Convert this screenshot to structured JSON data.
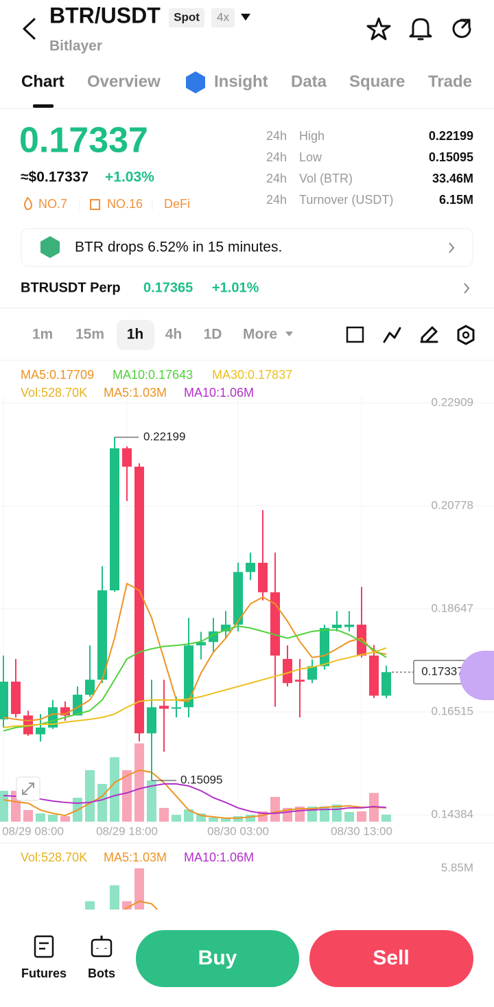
{
  "header": {
    "title": "BTR/USDT",
    "badges": [
      "Spot",
      "4x"
    ],
    "subtitle": "Bitlayer"
  },
  "tabs": [
    "Chart",
    "Overview",
    "Insight",
    "Data",
    "Square",
    "Trade"
  ],
  "price": {
    "last": "0.17337",
    "usd": "≈$0.17337",
    "change": "+1.03%",
    "tags": [
      "NO.7",
      "NO.16",
      "DeFi"
    ]
  },
  "stats": [
    [
      "24h",
      "High",
      "0.22199"
    ],
    [
      "24h",
      "Low",
      "0.15095"
    ],
    [
      "24h",
      "Vol (BTR)",
      "33.46M"
    ],
    [
      "24h",
      "Turnover (USDT)",
      "6.15M"
    ]
  ],
  "alert": "BTR drops 6.52% in 15 minutes.",
  "perp": {
    "name": "BTRUSDT Perp",
    "price": "0.17365",
    "change": "+1.01%"
  },
  "timeframes": [
    "1m",
    "15m",
    "1h",
    "4h",
    "1D",
    "More"
  ],
  "chart_data": {
    "type": "candlestick",
    "categories": [
      "08/29 08:00",
      null,
      null,
      null,
      null,
      null,
      null,
      null,
      null,
      null,
      "08/29 18:00",
      null,
      null,
      null,
      null,
      null,
      null,
      null,
      null,
      "08/30 03:00",
      null,
      null,
      null,
      null,
      null,
      null,
      null,
      null,
      null,
      "08/30 13:00",
      null,
      null
    ],
    "open": [
      0.1636,
      0.1714,
      0.1644,
      0.1605,
      0.1619,
      0.1661,
      0.1644,
      0.1687,
      0.1718,
      0.1903,
      0.2197,
      0.2159,
      0.1607,
      0.1664,
      0.1658,
      0.1661,
      0.1789,
      0.1796,
      0.1818,
      0.1832,
      0.1941,
      0.196,
      0.1899,
      0.1761,
      0.1718,
      0.1718,
      0.1746,
      0.1825,
      0.1827,
      0.1832,
      0.1768,
      0.1685
    ],
    "high": [
      0.1768,
      0.1761,
      0.1654,
      0.1647,
      0.1676,
      0.1673,
      0.1704,
      0.1789,
      0.1953,
      0.22199,
      0.2201,
      0.2166,
      0.1718,
      0.1718,
      0.1683,
      0.1846,
      0.1817,
      0.1846,
      0.186,
      0.196,
      0.1981,
      0.2069,
      0.1981,
      0.1789,
      0.1761,
      0.176,
      0.1832,
      0.186,
      0.186,
      0.191,
      0.179,
      0.1747
    ],
    "low": [
      0.1619,
      0.164,
      0.1602,
      0.159,
      0.1616,
      0.1633,
      0.1644,
      0.1683,
      0.1711,
      0.19,
      0.2088,
      0.159,
      0.15095,
      0.1569,
      0.164,
      0.164,
      0.176,
      0.1775,
      0.1804,
      0.1818,
      0.1924,
      0.1882,
      0.1662,
      0.1704,
      0.164,
      0.1711,
      0.1739,
      0.1818,
      0.1818,
      0.1764,
      0.168,
      0.168
    ],
    "close": [
      0.1714,
      0.1647,
      0.1605,
      0.1619,
      0.1661,
      0.1644,
      0.1687,
      0.1718,
      0.1903,
      0.2197,
      0.2159,
      0.1607,
      0.1661,
      0.1658,
      0.1661,
      0.1789,
      0.1796,
      0.1818,
      0.1832,
      0.1941,
      0.196,
      0.1899,
      0.1768,
      0.1711,
      0.1714,
      0.1746,
      0.1825,
      0.1832,
      0.1832,
      0.1768,
      0.1685,
      0.17337
    ],
    "up_color": "#1dbf84",
    "down_color": "#f53b5e",
    "ylim": [
      0.14384,
      0.22909
    ],
    "yticks": [
      0.22909,
      0.20778,
      0.18647,
      0.16515,
      0.14384
    ],
    "grid": true,
    "moving_averages": [
      {
        "name": "MA5",
        "label": "MA5:0.17709",
        "color": "#ec9322",
        "values": [
          0.164,
          0.1636,
          0.1633,
          0.1636,
          0.1647,
          0.1647,
          0.1661,
          0.1676,
          0.1718,
          0.1804,
          0.1917,
          0.1903,
          0.1846,
          0.1761,
          0.1676,
          0.1673,
          0.1732,
          0.1775,
          0.1804,
          0.1839,
          0.1875,
          0.1889,
          0.1875,
          0.1839,
          0.1797,
          0.1764,
          0.1768,
          0.1782,
          0.1797,
          0.1804,
          0.1775,
          0.17709
        ]
      },
      {
        "name": "MA10",
        "label": "MA10:0.17643",
        "color": "#4fd13a",
        "values": [
          0.1612,
          0.1619,
          0.1622,
          0.1626,
          0.1633,
          0.164,
          0.1647,
          0.1654,
          0.1676,
          0.1718,
          0.1761,
          0.1775,
          0.1782,
          0.1787,
          0.1789,
          0.1792,
          0.1797,
          0.1811,
          0.1821,
          0.1829,
          0.1825,
          0.1818,
          0.1811,
          0.1804,
          0.1811,
          0.1818,
          0.1821,
          0.1821,
          0.1811,
          0.1797,
          0.178,
          0.17643
        ]
      },
      {
        "name": "MA30",
        "label": "MA30:0.17837",
        "color": "#ecc01e",
        "values": [
          0.1619,
          0.1622,
          0.1623,
          0.1626,
          0.1626,
          0.163,
          0.1633,
          0.1636,
          0.164,
          0.1647,
          0.1661,
          0.1673,
          0.1676,
          0.1676,
          0.1676,
          0.1678,
          0.1683,
          0.169,
          0.1697,
          0.1704,
          0.1711,
          0.1718,
          0.1725,
          0.1732,
          0.174,
          0.1744,
          0.175,
          0.1758,
          0.1764,
          0.177,
          0.1775,
          0.17837
        ]
      }
    ],
    "volume": {
      "label": "Vol:528.70K",
      "color": "#e8b21e",
      "up_color": "#8fe2c3",
      "down_color": "#f8a5b8",
      "ticks": [
        {
          "value": 5.85,
          "label": "5.85M"
        }
      ],
      "values": [
        2.31,
        2.31,
        0.87,
        0.62,
        0.51,
        0.41,
        1.79,
        3.85,
        2.82,
        4.82,
        3.85,
        5.85,
        3.08,
        1.03,
        0.51,
        0.92,
        0.62,
        0.31,
        0.31,
        0.41,
        0.51,
        0.77,
        1.85,
        1.03,
        1.13,
        1.13,
        1.13,
        1.28,
        0.72,
        0.77,
        2.15,
        0.5287
      ]
    },
    "volume_averages": [
      {
        "name": "MA5",
        "label": "MA5:1.03M",
        "color": "#ec9322",
        "values": [
          1.64,
          1.49,
          1.38,
          0.87,
          0.62,
          0.46,
          0.87,
          1.38,
          1.9,
          2.92,
          3.44,
          3.85,
          3.69,
          2.92,
          1.9,
          0.87,
          0.46,
          0.36,
          0.26,
          0.26,
          0.36,
          0.46,
          0.72,
          0.87,
          0.97,
          0.97,
          1.08,
          1.13,
          1.18,
          1.08,
          1.08,
          1.03
        ]
      },
      {
        "name": "MA10",
        "label": "MA10:1.06M",
        "color": "#b230c8",
        "values": [
          1.95,
          1.9,
          1.79,
          1.69,
          1.54,
          1.44,
          1.38,
          1.44,
          1.64,
          1.95,
          2.15,
          2.46,
          2.67,
          2.82,
          2.82,
          2.67,
          2.31,
          1.79,
          1.44,
          1.03,
          0.77,
          0.62,
          0.62,
          0.72,
          0.82,
          0.87,
          0.92,
          0.92,
          1.03,
          1.03,
          1.13,
          1.06
        ]
      }
    ]
  },
  "footer": {
    "nav": [
      "Futures",
      "Bots"
    ],
    "buy": "Buy",
    "sell": "Sell"
  }
}
